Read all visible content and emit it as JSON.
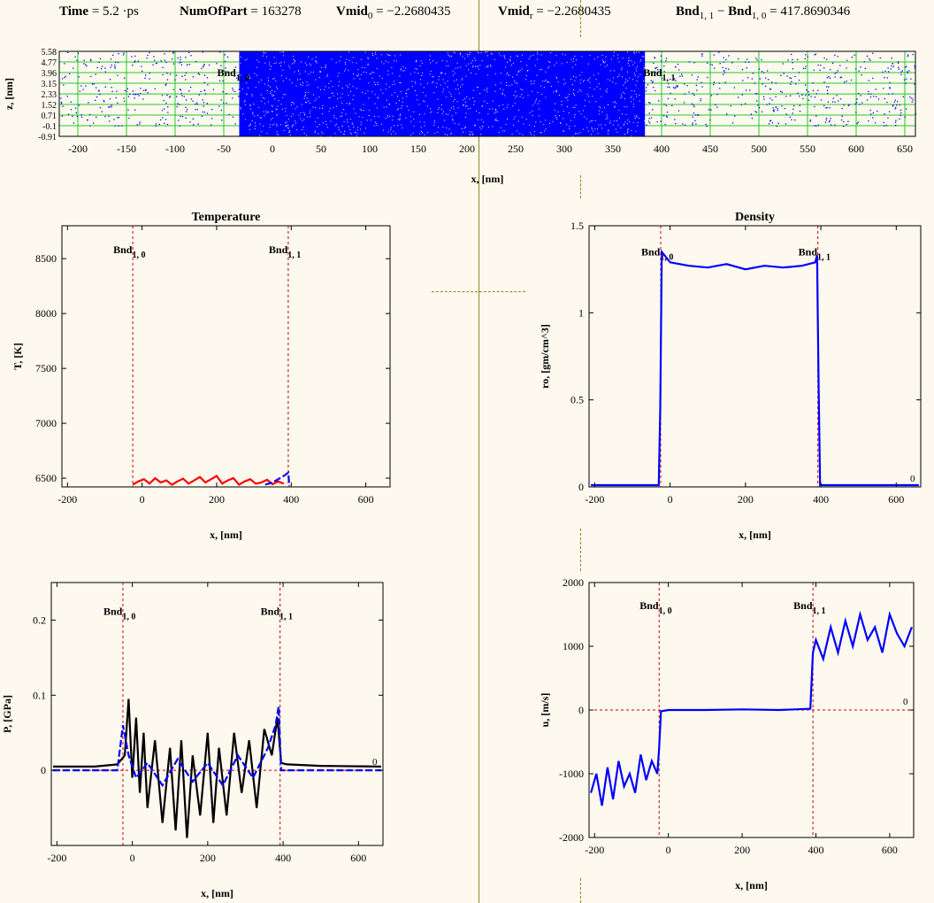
{
  "header": {
    "time_label": "Time",
    "time_value": "= 5.2 ·ps",
    "nparts_label": "NumOfPart",
    "nparts_value": "= 163278",
    "vmid0_label": "Vmid",
    "vmid0_sub": "0",
    "vmid0_value": "= −2.2680435",
    "vmidr_label": "Vmid",
    "vmidr_sub": "r",
    "vmidr_value": "= −2.2680435",
    "bnd_label_a": "Bnd",
    "bnd_sub_a": "1, 1",
    "bnd_minus": "−",
    "bnd_label_b": "Bnd",
    "bnd_sub_b": "1, 0",
    "bnd_value": "= 417.8690346"
  },
  "colors": {
    "background": "#fdf9ef",
    "particles": "#0000ff",
    "grid": "#22cc22",
    "boundary": "#cc0000",
    "divider": "#8a8a1e",
    "black_curve": "#000000",
    "red_curve": "#ff0000"
  },
  "chart_data": [
    {
      "id": "particles",
      "type": "scatter",
      "title": "",
      "xlabel": "x, [nm]",
      "ylabel": "z, [nm]",
      "xlim": [
        -210,
        670
      ],
      "ylim": [
        -0.91,
        5.58
      ],
      "xticks": [
        -200,
        -150,
        -100,
        -50,
        0,
        50,
        100,
        150,
        200,
        250,
        300,
        350,
        400,
        450,
        500,
        550,
        600,
        650
      ],
      "yticks": [
        -0.91,
        -0.1,
        0.71,
        1.52,
        2.33,
        3.15,
        3.96,
        4.77,
        5.58
      ],
      "ytick_labels": [
        "-0.91",
        "-0.1",
        "0.71",
        "1.52",
        "2.33",
        "3.15",
        "3.96",
        "4.77",
        "5.58"
      ],
      "dense_region": [
        -25,
        392
      ],
      "sparse_region_left": [
        -210,
        -25
      ],
      "sparse_region_right": [
        392,
        670
      ],
      "dense_zmax": 5.58,
      "sparse_zmin": -0.1,
      "sparse_zmax": 5.58,
      "annotations": [
        {
          "text": "Bnd",
          "sub": "1, 0",
          "x": -25
        },
        {
          "text": "Bnd",
          "sub": "1, 1",
          "x": 392
        }
      ]
    },
    {
      "id": "temperature",
      "type": "line",
      "title": "Temperature",
      "xlabel": "x, [nm]",
      "ylabel": "T, [K]",
      "xlim": [
        -215,
        665
      ],
      "ylim": [
        6420,
        8800
      ],
      "xticks": [
        -200,
        0,
        200,
        400,
        600
      ],
      "yticks": [
        6500,
        7000,
        7500,
        8000,
        8500
      ],
      "boundaries": [
        -25,
        392
      ],
      "annotations": [
        {
          "text": "Bnd",
          "sub": "1, 0",
          "x": -25,
          "y": 8500
        },
        {
          "text": "Bnd",
          "sub": "1, 1",
          "x": 392,
          "y": 8500
        }
      ],
      "series": [
        {
          "color": "#ff0000",
          "style": "solid",
          "x": [
            -25,
            -10,
            5,
            20,
            35,
            50,
            65,
            80,
            95,
            110,
            125,
            140,
            155,
            170,
            185,
            200,
            215,
            230,
            245,
            260,
            275,
            290,
            305,
            320,
            335,
            350,
            365,
            380
          ],
          "y": [
            6440,
            6470,
            6490,
            6450,
            6500,
            6460,
            6480,
            6440,
            6470,
            6495,
            6450,
            6480,
            6510,
            6460,
            6490,
            6520,
            6450,
            6480,
            6500,
            6440,
            6470,
            6490,
            6450,
            6460,
            6485,
            6445,
            6470,
            6450
          ]
        },
        {
          "color": "#0000ff",
          "style": "dashed",
          "x": [
            330,
            350,
            365,
            380,
            392,
            395
          ],
          "y": [
            6440,
            6460,
            6490,
            6520,
            6550,
            6430
          ]
        }
      ]
    },
    {
      "id": "density",
      "type": "line",
      "title": "Density",
      "xlabel": "x, [nm]",
      "ylabel": "ro, [gm/cm^3]",
      "xlim": [
        -215,
        665
      ],
      "ylim": [
        0,
        1.5
      ],
      "xticks": [
        -200,
        0,
        200,
        400,
        600
      ],
      "yticks": [
        0,
        0.5,
        1,
        1.5
      ],
      "boundaries": [
        -25,
        392
      ],
      "zero_line": 0,
      "corner_label": "0",
      "annotations": [
        {
          "text": "Bnd",
          "sub": "1, 0",
          "x": -25,
          "y": 1.3
        },
        {
          "text": "Bnd",
          "sub": "1, 1",
          "x": 392,
          "y": 1.3
        }
      ],
      "series": [
        {
          "color": "#0000ff",
          "style": "solid",
          "x": [
            -210,
            -30,
            -26,
            -22,
            0,
            50,
            100,
            150,
            200,
            250,
            300,
            350,
            385,
            390,
            394,
            398,
            660
          ],
          "y": [
            0.01,
            0.01,
            0.45,
            1.35,
            1.29,
            1.27,
            1.26,
            1.28,
            1.25,
            1.27,
            1.26,
            1.27,
            1.29,
            1.33,
            0.6,
            0.01,
            0.01
          ]
        }
      ]
    },
    {
      "id": "pressure",
      "type": "line",
      "title": "",
      "xlabel": "x, [nm]",
      "ylabel": "P, [GPa]",
      "xlim": [
        -215,
        665
      ],
      "ylim": [
        -0.1,
        0.25
      ],
      "xticks": [
        -200,
        0,
        200,
        400,
        600
      ],
      "yticks": [
        0,
        0.1,
        0.2
      ],
      "boundaries": [
        -25,
        392
      ],
      "zero_line": 0,
      "corner_label": "0",
      "annotations": [
        {
          "text": "Bnd",
          "sub": "1, 0",
          "x": -25,
          "y": 0.2
        },
        {
          "text": "Bnd",
          "sub": "1, 1",
          "x": 392,
          "y": 0.2
        }
      ],
      "series": [
        {
          "color": "#000000",
          "style": "solid",
          "x": [
            -210,
            -100,
            -40,
            -20,
            -10,
            0,
            10,
            20,
            30,
            40,
            60,
            80,
            100,
            115,
            130,
            145,
            160,
            180,
            200,
            215,
            230,
            250,
            270,
            290,
            310,
            330,
            350,
            370,
            385,
            395,
            410,
            500,
            660
          ],
          "y": [
            0.005,
            0.005,
            0.008,
            0.02,
            0.095,
            -0.01,
            0.07,
            -0.03,
            0.05,
            -0.05,
            0.04,
            -0.07,
            0.03,
            -0.08,
            0.04,
            -0.09,
            0.02,
            -0.06,
            0.05,
            -0.07,
            0.03,
            -0.06,
            0.05,
            -0.03,
            0.04,
            -0.05,
            0.055,
            0.02,
            0.07,
            0.01,
            0.008,
            0.006,
            0.005
          ]
        },
        {
          "color": "#0000ff",
          "style": "dashed",
          "x": [
            -210,
            -40,
            -25,
            -10,
            10,
            40,
            80,
            120,
            160,
            200,
            240,
            280,
            320,
            360,
            380,
            388,
            395,
            410,
            660
          ],
          "y": [
            0.0,
            0.0,
            0.06,
            0.02,
            -0.01,
            0.01,
            -0.02,
            0.015,
            -0.015,
            0.01,
            -0.02,
            0.02,
            -0.01,
            0.03,
            0.06,
            0.085,
            0.0,
            0.0,
            0.0
          ]
        }
      ]
    },
    {
      "id": "velocity",
      "type": "line",
      "title": "",
      "xlabel": "x, [nm]",
      "ylabel": "u, [m/s]",
      "xlim": [
        -215,
        665
      ],
      "ylim": [
        -2000,
        2000
      ],
      "xticks": [
        -200,
        0,
        200,
        400,
        600
      ],
      "yticks": [
        -2000,
        -1000,
        0,
        1000,
        2000
      ],
      "boundaries": [
        -25,
        392
      ],
      "zero_line": 0,
      "corner_label": "0",
      "annotations": [
        {
          "text": "Bnd",
          "sub": "1, 0",
          "x": -25,
          "y": 1500
        },
        {
          "text": "Bnd",
          "sub": "1, 1",
          "x": 392,
          "y": 1500
        }
      ],
      "series": [
        {
          "color": "#0000ff",
          "style": "solid",
          "x": [
            -210,
            -195,
            -180,
            -165,
            -150,
            -135,
            -120,
            -105,
            -90,
            -75,
            -60,
            -45,
            -30,
            -25,
            -20,
            0,
            100,
            200,
            300,
            385,
            392,
            400,
            420,
            440,
            460,
            480,
            500,
            520,
            540,
            560,
            580,
            600,
            620,
            640,
            660
          ],
          "y": [
            -1300,
            -1000,
            -1500,
            -900,
            -1400,
            -800,
            -1200,
            -1000,
            -1300,
            -700,
            -1100,
            -800,
            -1000,
            -600,
            -20,
            0,
            0,
            10,
            0,
            20,
            900,
            1100,
            800,
            1300,
            900,
            1400,
            1000,
            1500,
            1100,
            1300,
            900,
            1500,
            1200,
            1000,
            1300
          ]
        }
      ]
    }
  ]
}
